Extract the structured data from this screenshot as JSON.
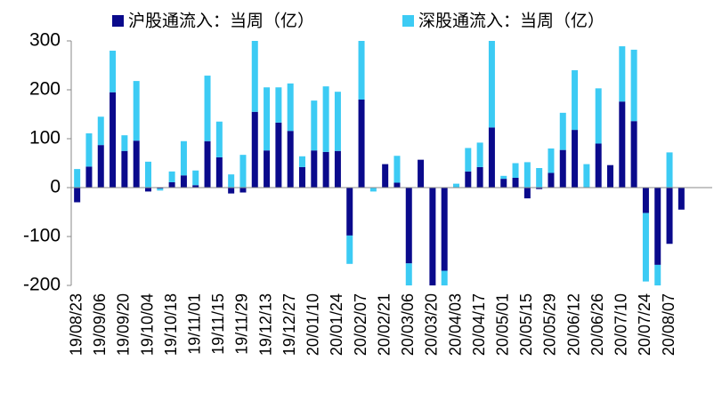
{
  "chart_data": {
    "type": "stacked_bar",
    "categories": [
      "19/08/23",
      null,
      "19/09/06",
      null,
      "19/09/20",
      null,
      "19/10/04",
      null,
      "19/10/18",
      null,
      "19/11/01",
      null,
      "19/11/15",
      null,
      "19/11/29",
      null,
      "19/12/13",
      null,
      "19/12/27",
      null,
      "20/01/10",
      null,
      "20/01/24",
      null,
      "20/02/07",
      null,
      "20/02/21",
      null,
      "20/03/06",
      null,
      "20/03/20",
      null,
      "20/04/03",
      null,
      "20/04/17",
      null,
      "20/05/01",
      null,
      "20/05/15",
      null,
      "20/05/29",
      null,
      "20/06/12",
      null,
      "20/06/26",
      null,
      "20/07/10",
      null,
      "20/07/24",
      null,
      "20/08/07",
      null
    ],
    "series": [
      {
        "name": "沪股通流入：当周（亿）",
        "color": "#0a0a8c",
        "values": [
          -30,
          43,
          87,
          195,
          75,
          96,
          -8,
          -2,
          11,
          25,
          5,
          95,
          62,
          -12,
          -10,
          155,
          76,
          133,
          116,
          42,
          76,
          73,
          75,
          -98,
          180,
          0,
          48,
          10,
          -155,
          57,
          -205,
          -170,
          0,
          33,
          42,
          123,
          18,
          20,
          -22,
          -3,
          30,
          77,
          118,
          0,
          90,
          46,
          176,
          136,
          -52,
          -158,
          -115,
          -45
        ]
      },
      {
        "name": "深股通流入：当周（亿）",
        "color": "#3ccbf4",
        "values": [
          38,
          68,
          58,
          85,
          32,
          122,
          53,
          -4,
          22,
          70,
          30,
          134,
          73,
          27,
          67,
          145,
          129,
          72,
          97,
          22,
          102,
          134,
          121,
          -58,
          120,
          -8,
          0,
          55,
          -48,
          0,
          0,
          -35,
          8,
          48,
          50,
          177,
          6,
          30,
          52,
          40,
          50,
          76,
          122,
          48,
          113,
          0,
          113,
          146,
          -140,
          -45,
          72,
          0
        ]
      }
    ],
    "ylim": [
      -200,
      300
    ],
    "yticks": [
      -200,
      -100,
      0,
      100,
      200,
      300
    ]
  }
}
